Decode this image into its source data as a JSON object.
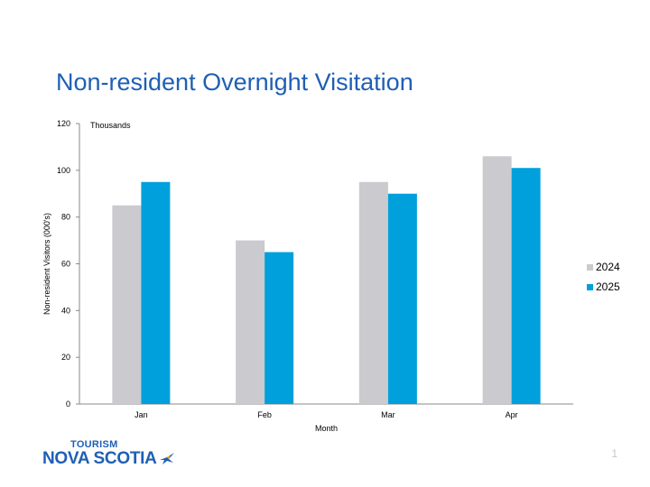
{
  "slide": {
    "title": "Non-resident Overnight Visitation",
    "page_number": "1"
  },
  "logo": {
    "line1": "TOURISM",
    "line2": "NOVA SCOTIA",
    "mark_icon": "bird-icon"
  },
  "colors": {
    "title": "#1f5fb4",
    "series_2024": "#cacacf",
    "series_2025": "#00a0dc"
  },
  "chart_data": {
    "type": "bar",
    "title": "",
    "unit_label": "Thousands",
    "xlabel": "Month",
    "ylabel": "Non-resident Visitors (000's)",
    "categories": [
      "Jan",
      "Feb",
      "Mar",
      "Apr"
    ],
    "ylim": [
      0,
      120
    ],
    "yticks": [
      0,
      20,
      40,
      60,
      80,
      100,
      120
    ],
    "grid": false,
    "legend_position": "right",
    "series": [
      {
        "name": "2024",
        "values": [
          85,
          70,
          95,
          106
        ],
        "color": "#cacacf"
      },
      {
        "name": "2025",
        "values": [
          95,
          65,
          90,
          101
        ],
        "color": "#00a0dc"
      }
    ]
  }
}
